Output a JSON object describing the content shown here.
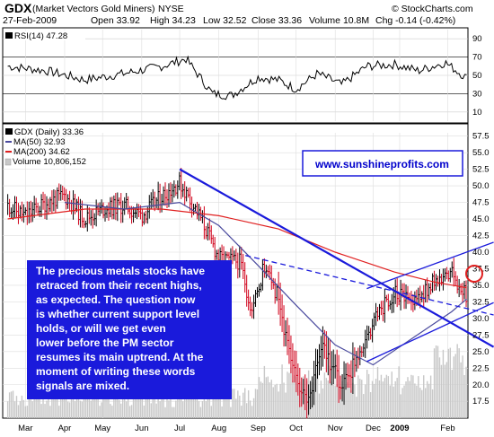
{
  "header": {
    "symbol": "GDX",
    "name": "(Market Vectors Gold Miners)",
    "exchange": "NYSE",
    "copyright": "© StockCharts.com",
    "date": "27-Feb-2009",
    "open": "Open 33.92",
    "high": "High 34.23",
    "low": "Low 32.52",
    "close": "Close 33.36",
    "volume": "Volume 10.8M",
    "change": "Chg -0.14 (-0.42%)"
  },
  "rsi_panel": {
    "label": "RSI(14) 47.28",
    "ticks": [
      "90",
      "70",
      "50",
      "30",
      "10"
    ]
  },
  "price_panel": {
    "legend": [
      "GDX (Daily) 33.36",
      "MA(50) 32.93",
      "MA(200) 34.62",
      "Volume 10,806,152"
    ],
    "url_text": "www.sunshineprofits.com",
    "commentary": [
      "The precious metals stocks have",
      "retraced from their recent highs,",
      "as expected. The question now",
      "is whether current support level",
      "holds, or  will we get even",
      "lower before the PM sector",
      "resumes its main uptrend. At the",
      "moment of writing these words",
      "signals are mixed."
    ]
  },
  "colors": {
    "ma50": "#4a4a9e",
    "ma200": "#e02020",
    "trendline": "#1a1adb",
    "up_bar": "#000000",
    "down_bar": "#d0001a",
    "volume": "#c8c8c8",
    "note_bg": "#1a1adb",
    "marker": "#e02020"
  },
  "chart_data": {
    "type": "ohlc",
    "y_ticks": [
      "57.5",
      "55.0",
      "52.5",
      "50.0",
      "47.5",
      "45.0",
      "42.5",
      "40.0",
      "37.5",
      "35.0",
      "32.5",
      "30.0",
      "27.5",
      "25.0",
      "22.5",
      "20.0",
      "17.5"
    ],
    "x_ticks": [
      "Mar",
      "Apr",
      "May",
      "Jun",
      "Jul",
      "Aug",
      "Sep",
      "Oct",
      "Nov",
      "Dec",
      "2009",
      "Feb"
    ],
    "ylim": [
      15.5,
      58
    ],
    "rsi_ylim": [
      0,
      100
    ],
    "close_path": [
      [
        "2008-03-01",
        47
      ],
      [
        "2008-03-15",
        45.5
      ],
      [
        "2008-04-01",
        47.5
      ],
      [
        "2008-04-15",
        48.5
      ],
      [
        "2008-05-01",
        45
      ],
      [
        "2008-05-15",
        46.5
      ],
      [
        "2008-06-01",
        47
      ],
      [
        "2008-06-15",
        45.5
      ],
      [
        "2008-07-01",
        48.5
      ],
      [
        "2008-07-15",
        50.5
      ],
      [
        "2008-08-01",
        45
      ],
      [
        "2008-08-15",
        39
      ],
      [
        "2008-09-01",
        38.5
      ],
      [
        "2008-09-10",
        31
      ],
      [
        "2008-09-20",
        38
      ],
      [
        "2008-10-01",
        33
      ],
      [
        "2008-10-10",
        24
      ],
      [
        "2008-10-24",
        16.5
      ],
      [
        "2008-11-05",
        26
      ],
      [
        "2008-11-20",
        19.5
      ],
      [
        "2008-12-05",
        25
      ],
      [
        "2008-12-20",
        31
      ],
      [
        "2009-01-01",
        34
      ],
      [
        "2009-01-15",
        32
      ],
      [
        "2009-02-01",
        35.5
      ],
      [
        "2009-02-15",
        37
      ],
      [
        "2009-02-27",
        33.36
      ]
    ],
    "ma50_path": [
      [
        "2008-04-15",
        47.5
      ],
      [
        "2008-06-01",
        46.5
      ],
      [
        "2008-07-15",
        47.5
      ],
      [
        "2008-08-15",
        44
      ],
      [
        "2008-09-15",
        38
      ],
      [
        "2008-10-15",
        32
      ],
      [
        "2008-11-15",
        26
      ],
      [
        "2008-12-15",
        23
      ],
      [
        "2009-01-15",
        27
      ],
      [
        "2009-02-15",
        31
      ],
      [
        "2009-02-27",
        32.93
      ]
    ],
    "ma200_path": [
      [
        "2008-03-01",
        45
      ],
      [
        "2008-05-01",
        46.5
      ],
      [
        "2008-07-01",
        46.5
      ],
      [
        "2008-08-15",
        45.5
      ],
      [
        "2008-10-01",
        43.5
      ],
      [
        "2008-11-15",
        40
      ],
      [
        "2009-01-01",
        37
      ],
      [
        "2009-02-01",
        35.5
      ],
      [
        "2009-02-27",
        34.62
      ]
    ],
    "rsi_path": [
      [
        "2008-03-01",
        60
      ],
      [
        "2008-04-01",
        55
      ],
      [
        "2008-05-01",
        45
      ],
      [
        "2008-06-01",
        52
      ],
      [
        "2008-07-01",
        60
      ],
      [
        "2008-07-20",
        68
      ],
      [
        "2008-08-10",
        30
      ],
      [
        "2008-08-25",
        28
      ],
      [
        "2008-09-15",
        48
      ],
      [
        "2008-10-01",
        45
      ],
      [
        "2008-10-15",
        35
      ],
      [
        "2008-11-01",
        52
      ],
      [
        "2008-11-20",
        40
      ],
      [
        "2008-12-10",
        60
      ],
      [
        "2009-01-01",
        62
      ],
      [
        "2009-01-20",
        55
      ],
      [
        "2009-02-10",
        64
      ],
      [
        "2009-02-27",
        47.28
      ]
    ],
    "trendlines": [
      {
        "from": [
          "2008-07-15",
          52.5
        ],
        "to": [
          "2009-02-27",
          28
        ],
        "style": "solid"
      },
      {
        "from": [
          "2008-09-05",
          39.5
        ],
        "to": [
          "2009-02-27",
          31.5
        ],
        "style": "dashed"
      },
      {
        "from": [
          "2008-12-10",
          34.5
        ],
        "to": [
          "2009-02-27",
          40
        ],
        "style": "solid"
      },
      {
        "from": [
          "2008-12-10",
          23.5
        ],
        "to": [
          "2009-02-27",
          30.5
        ],
        "style": "solid"
      }
    ]
  }
}
